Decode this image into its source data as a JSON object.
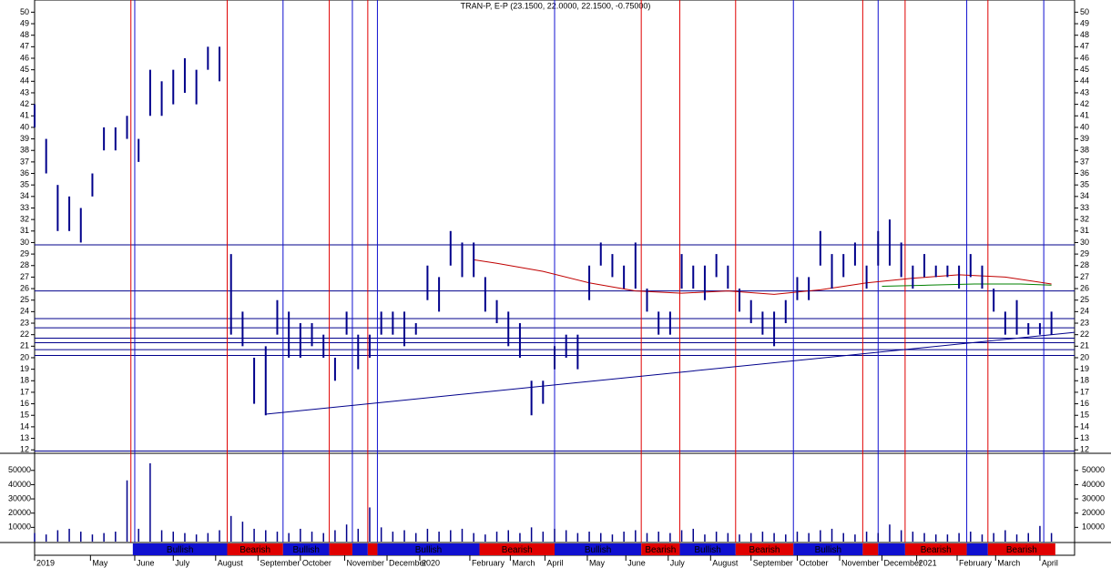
{
  "chart_data": {
    "type": "ohlc",
    "title": "TRAN-P, E-P (23.1500, 22.0000, 22.1500, -0.75000)",
    "xlim": [
      0,
      540
    ],
    "xticks": [
      {
        "value": 0,
        "label": "2019"
      },
      {
        "value": 29,
        "label": "May"
      },
      {
        "value": 52,
        "label": "June"
      },
      {
        "value": 72,
        "label": "July"
      },
      {
        "value": 94,
        "label": "August"
      },
      {
        "value": 116,
        "label": "September"
      },
      {
        "value": 138,
        "label": "October"
      },
      {
        "value": 161,
        "label": "November"
      },
      {
        "value": 183,
        "label": "December"
      },
      {
        "value": 200,
        "label": "2020"
      },
      {
        "value": 226,
        "label": "February"
      },
      {
        "value": 247,
        "label": "March"
      },
      {
        "value": 265,
        "label": "April"
      },
      {
        "value": 287,
        "label": "May"
      },
      {
        "value": 307,
        "label": "June"
      },
      {
        "value": 329,
        "label": "July"
      },
      {
        "value": 351,
        "label": "August"
      },
      {
        "value": 372,
        "label": "September"
      },
      {
        "value": 396,
        "label": "October"
      },
      {
        "value": 418,
        "label": "November"
      },
      {
        "value": 440,
        "label": "December"
      },
      {
        "value": 458,
        "label": "2021"
      },
      {
        "value": 479,
        "label": "February"
      },
      {
        "value": 499,
        "label": "March"
      },
      {
        "value": 522,
        "label": "April"
      }
    ],
    "ylim": [
      11.7,
      50.9
    ],
    "yticks": [
      12,
      13,
      14,
      15,
      16,
      17,
      18,
      19,
      20,
      21,
      22,
      23,
      24,
      25,
      26,
      27,
      28,
      29,
      30,
      31,
      32,
      33,
      34,
      35,
      36,
      37,
      38,
      39,
      40,
      41,
      42,
      43,
      44,
      45,
      46,
      47,
      48,
      49,
      50
    ],
    "x": [
      0,
      6,
      12,
      18,
      24,
      30,
      36,
      42,
      48,
      54,
      60,
      66,
      72,
      78,
      84,
      90,
      96,
      102,
      108,
      114,
      120,
      126,
      132,
      138,
      144,
      150,
      156,
      162,
      168,
      174,
      180,
      186,
      192,
      198,
      204,
      210,
      216,
      222,
      228,
      234,
      240,
      246,
      252,
      258,
      264,
      270,
      276,
      282,
      288,
      294,
      300,
      306,
      312,
      318,
      324,
      330,
      336,
      342,
      348,
      354,
      360,
      366,
      372,
      378,
      384,
      390,
      396,
      402,
      408,
      414,
      420,
      426,
      432,
      438,
      444,
      450,
      456,
      462,
      468,
      474,
      480,
      486,
      492,
      498,
      504,
      510,
      516,
      522,
      528
    ],
    "series": [
      {
        "color": "#00008b",
        "high": [
          42,
          39,
          35,
          34,
          33,
          36,
          40,
          40,
          41,
          39,
          45,
          44,
          45,
          46,
          45,
          47,
          47,
          29,
          24,
          20,
          21,
          25,
          24,
          23,
          23,
          22,
          20,
          24,
          22,
          22,
          24,
          24,
          24,
          23,
          28,
          27,
          31,
          30,
          30,
          27,
          25,
          24,
          23,
          18,
          18,
          21,
          22,
          22,
          28,
          30,
          29,
          28,
          30,
          26,
          24,
          24,
          29,
          28,
          28,
          29,
          28,
          26,
          25,
          24,
          24,
          25,
          27,
          27,
          31,
          29,
          29,
          30,
          28,
          31,
          32,
          30,
          28,
          29,
          28,
          28,
          28,
          29,
          28,
          26,
          24,
          25,
          23,
          23,
          24
        ],
        "low": [
          40,
          36,
          31,
          31,
          30,
          34,
          38,
          38,
          39,
          37,
          41,
          41,
          42,
          43,
          42,
          45,
          44,
          22,
          21,
          16,
          15,
          22,
          20,
          20,
          21,
          20,
          18,
          22,
          19,
          20,
          22,
          22,
          21,
          22,
          25,
          24,
          28,
          27,
          27,
          24,
          23,
          21,
          20,
          15,
          16,
          19,
          20,
          19,
          25,
          28,
          27,
          26,
          26,
          24,
          22,
          22,
          26,
          26,
          25,
          27,
          26,
          24,
          23,
          22,
          21,
          23,
          25,
          25,
          28,
          26,
          27,
          28,
          26,
          28,
          28,
          27,
          26,
          27,
          27,
          27,
          26,
          27,
          26,
          24,
          22,
          22,
          22,
          22,
          22
        ]
      }
    ],
    "lines": [
      {
        "color": "#c00000",
        "x": [
          228,
          240,
          264,
          288,
          312,
          336,
          360,
          384,
          408,
          432,
          456,
          480,
          504,
          528
        ],
        "values": [
          28.5,
          28.2,
          27.5,
          26.5,
          25.8,
          25.6,
          25.8,
          25.5,
          25.9,
          26.5,
          26.9,
          27.2,
          27.0,
          26.4
        ]
      },
      {
        "color": "#008000",
        "x": [
          440,
          464,
          488,
          512,
          528
        ],
        "values": [
          26.2,
          26.3,
          26.4,
          26.4,
          26.3
        ]
      },
      {
        "color": "#00008b",
        "x": [
          120,
          540
        ],
        "values": [
          15.1,
          22.2
        ]
      }
    ],
    "hlines": [
      29.8,
      25.8,
      23.4,
      22.6,
      21.7,
      21.3,
      20.7,
      20.2,
      11.9
    ],
    "red_lines": [
      50,
      100,
      153,
      173,
      315,
      335,
      364,
      430,
      452,
      495
    ],
    "blue_lines": [
      52,
      129,
      165,
      178,
      270,
      394,
      438,
      484,
      524
    ],
    "volume": {
      "color": "#00008b",
      "ylim": [
        0,
        62000
      ],
      "yticks": [
        10000,
        20000,
        30000,
        40000,
        50000
      ],
      "values": [
        6000,
        5000,
        8000,
        9000,
        7000,
        5000,
        6000,
        7000,
        43000,
        9000,
        55000,
        8000,
        7000,
        6000,
        5000,
        6000,
        8000,
        18000,
        14000,
        9000,
        8000,
        7000,
        6000,
        9000,
        7000,
        6000,
        8000,
        12000,
        9000,
        24000,
        10000,
        7000,
        8000,
        6000,
        9000,
        7000,
        8000,
        9000,
        6000,
        5000,
        7000,
        8000,
        6000,
        10000,
        7000,
        9000,
        8000,
        6000,
        7000,
        6000,
        5000,
        7000,
        8000,
        6000,
        7000,
        6000,
        8000,
        9000,
        5000,
        7000,
        6000,
        5000,
        6000,
        7000,
        6000,
        5000,
        7000,
        6000,
        8000,
        9000,
        6000,
        5000,
        7000,
        6000,
        12000,
        8000,
        7000,
        6000,
        5000,
        5000,
        6000,
        7000,
        5000,
        6000,
        8000,
        5000,
        6000,
        11000,
        6000
      ]
    },
    "signals": [
      {
        "start": 51,
        "end": 100,
        "color": "#1010d0",
        "label": "Bullish"
      },
      {
        "start": 100,
        "end": 129,
        "color": "#e00000",
        "label": "Bearish"
      },
      {
        "start": 129,
        "end": 153,
        "color": "#1010d0",
        "label": "Bullish"
      },
      {
        "start": 153,
        "end": 165,
        "color": "#e00000",
        "label": null
      },
      {
        "start": 165,
        "end": 173,
        "color": "#1010d0",
        "label": null
      },
      {
        "start": 173,
        "end": 178,
        "color": "#e00000",
        "label": null
      },
      {
        "start": 178,
        "end": 231,
        "color": "#1010d0",
        "label": "Bullish"
      },
      {
        "start": 231,
        "end": 270,
        "color": "#e00000",
        "label": "Bearish"
      },
      {
        "start": 270,
        "end": 315,
        "color": "#1010d0",
        "label": "Bullish"
      },
      {
        "start": 315,
        "end": 335,
        "color": "#e00000",
        "label": "Bearish"
      },
      {
        "start": 335,
        "end": 364,
        "color": "#1010d0",
        "label": "Bullish"
      },
      {
        "start": 364,
        "end": 394,
        "color": "#e00000",
        "label": "Bearish"
      },
      {
        "start": 394,
        "end": 430,
        "color": "#1010d0",
        "label": "Bullish"
      },
      {
        "start": 430,
        "end": 438,
        "color": "#e00000",
        "label": null
      },
      {
        "start": 438,
        "end": 452,
        "color": "#1010d0",
        "label": null
      },
      {
        "start": 452,
        "end": 484,
        "color": "#e00000",
        "label": "Bearish"
      },
      {
        "start": 484,
        "end": 495,
        "color": "#1010d0",
        "label": null
      },
      {
        "start": 495,
        "end": 530,
        "color": "#e00000",
        "label": "Bearish"
      }
    ]
  }
}
